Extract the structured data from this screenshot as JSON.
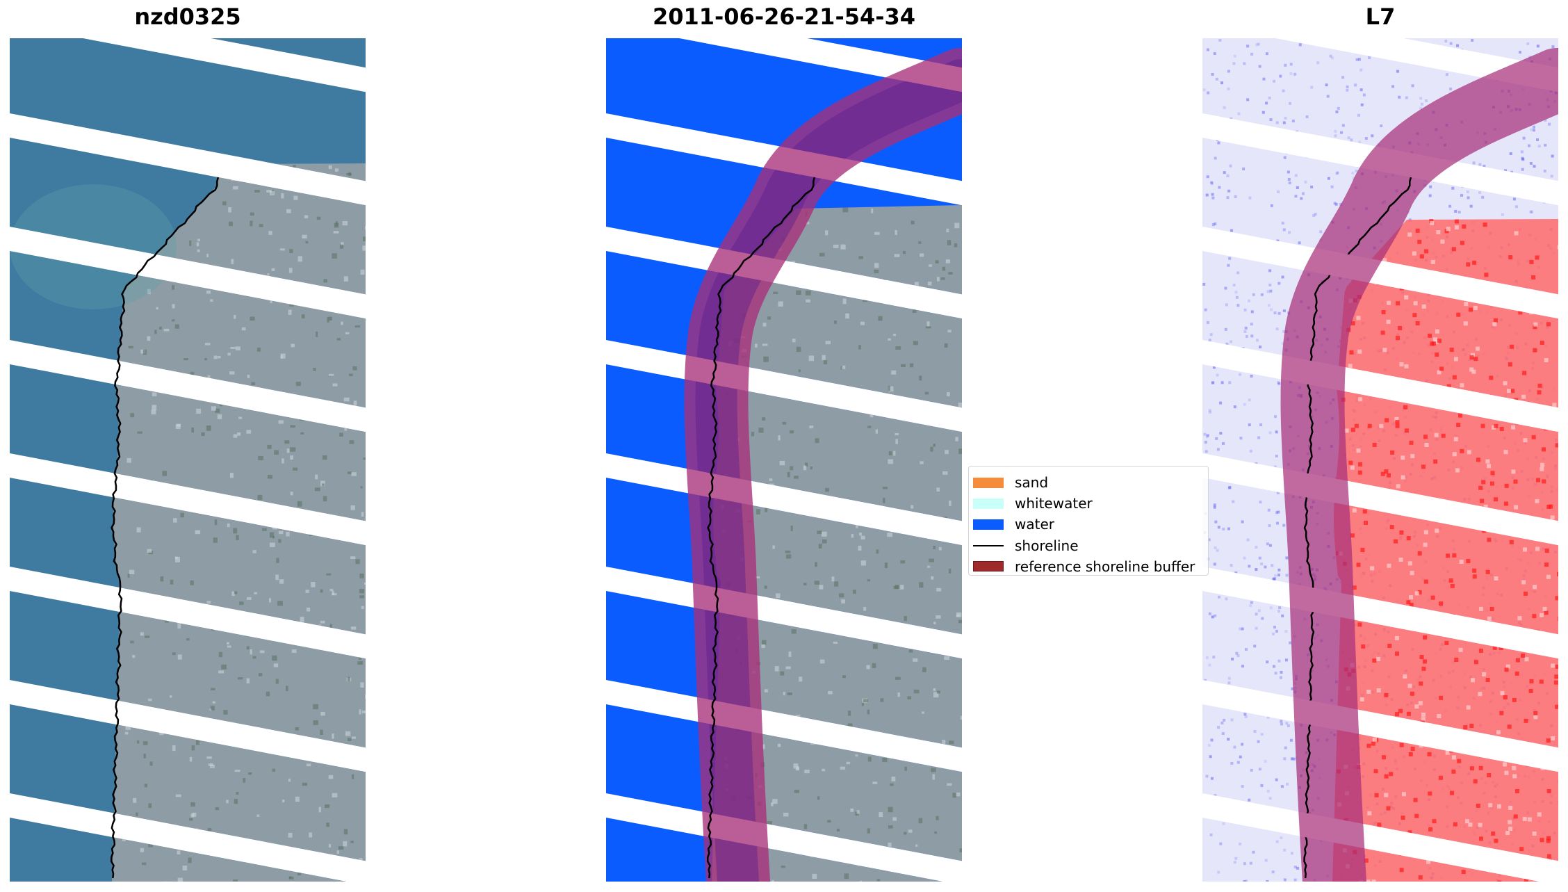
{
  "panels": [
    {
      "title": "nzd0325",
      "kind": "rgb"
    },
    {
      "title": "2011-06-26-21-54-34",
      "kind": "classified"
    },
    {
      "title": "L7",
      "kind": "index"
    }
  ],
  "legend": {
    "items": [
      {
        "label": "sand",
        "color": "#f58c3c",
        "kind": "patch"
      },
      {
        "label": "whitewater",
        "color": "#c8fff8",
        "kind": "patch"
      },
      {
        "label": "water",
        "color": "#0a5cff",
        "kind": "patch"
      },
      {
        "label": "shoreline",
        "color": "#000000",
        "kind": "line"
      },
      {
        "label": "reference shoreline buffer",
        "color": "#9e2a2b",
        "kind": "patch"
      }
    ]
  },
  "colors": {
    "ocean": "#3f7aa0",
    "land": "#8e9ca5",
    "water_class": "#0a5cff",
    "buffer_overlay": "#a8307a",
    "index_low": "#5a5cf0",
    "index_high": "#ff1a1a"
  }
}
